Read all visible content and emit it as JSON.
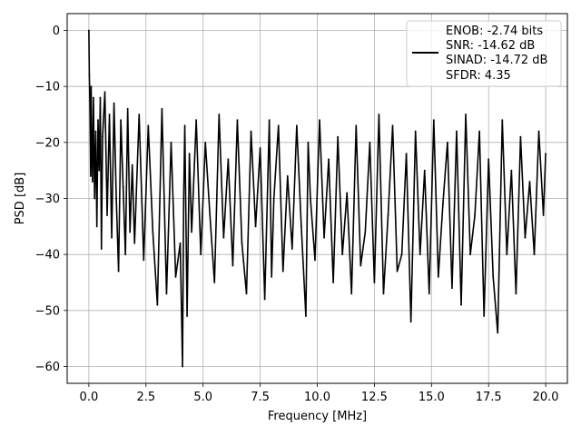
{
  "chart_data": {
    "type": "line",
    "title": "",
    "xlabel": "Frequency [MHz]",
    "ylabel": "PSD [dB]",
    "xlim": [
      -0.95,
      20.95
    ],
    "ylim": [
      -63,
      3
    ],
    "xticks": [
      0.0,
      2.5,
      5.0,
      7.5,
      10.0,
      12.5,
      15.0,
      17.5,
      20.0
    ],
    "xtick_labels": [
      "0.0",
      "2.5",
      "5.0",
      "7.5",
      "10.0",
      "12.5",
      "15.0",
      "17.5",
      "20.0"
    ],
    "yticks": [
      0,
      -10,
      -20,
      -30,
      -40,
      -50,
      -60
    ],
    "ytick_labels": [
      "0",
      "−10",
      "−20",
      "−30",
      "−40",
      "−50",
      "−60"
    ],
    "grid": true,
    "legend_position": "top-right",
    "legend_entries": [
      "ENOB: -2.74 bits",
      "SNR: -14.62 dB",
      "SINAD: -14.72 dB",
      "SFDR: 4.35"
    ],
    "series_color": "#000000",
    "series": [
      {
        "x": [
          0.0,
          0.02,
          0.05,
          0.08,
          0.1,
          0.13,
          0.16,
          0.2,
          0.25,
          0.3,
          0.35,
          0.4,
          0.45,
          0.5,
          0.55,
          0.6,
          0.7,
          0.8,
          0.9,
          1.0,
          1.1,
          1.2,
          1.3,
          1.4,
          1.5,
          1.6,
          1.7,
          1.8,
          1.9,
          2.0,
          2.2,
          2.4,
          2.6,
          2.8,
          3.0,
          3.2,
          3.4,
          3.6,
          3.8,
          4.0,
          4.1,
          4.15,
          4.2,
          4.3,
          4.4,
          4.5,
          4.7,
          4.9,
          5.1,
          5.3,
          5.5,
          5.7,
          5.9,
          6.1,
          6.3,
          6.5,
          6.7,
          6.9,
          7.1,
          7.3,
          7.5,
          7.7,
          7.9,
          8.0,
          8.1,
          8.3,
          8.5,
          8.7,
          8.9,
          9.1,
          9.3,
          9.5,
          9.6,
          9.7,
          9.9,
          10.1,
          10.3,
          10.5,
          10.7,
          10.9,
          11.1,
          11.3,
          11.5,
          11.7,
          11.9,
          12.1,
          12.3,
          12.5,
          12.7,
          12.9,
          13.1,
          13.3,
          13.5,
          13.7,
          13.9,
          14.1,
          14.3,
          14.5,
          14.7,
          14.9,
          15.1,
          15.3,
          15.5,
          15.7,
          15.9,
          16.1,
          16.3,
          16.5,
          16.7,
          16.9,
          17.1,
          17.3,
          17.5,
          17.7,
          17.9,
          18.1,
          18.3,
          18.5,
          18.7,
          18.9,
          19.1,
          19.3,
          19.5,
          19.7,
          19.9,
          20.0
        ],
        "y": [
          0,
          -8,
          -14,
          -26,
          -10,
          -22,
          -27,
          -12,
          -30,
          -18,
          -35,
          -16,
          -25,
          -12,
          -39,
          -19,
          -11,
          -33,
          -15,
          -37,
          -13,
          -30,
          -43,
          -16,
          -28,
          -40,
          -14,
          -36,
          -24,
          -38,
          -15,
          -41,
          -17,
          -36,
          -49,
          -14,
          -47,
          -20,
          -44,
          -38,
          -60,
          -30,
          -17,
          -51,
          -22,
          -36,
          -16,
          -40,
          -20,
          -33,
          -45,
          -15,
          -37,
          -23,
          -42,
          -16,
          -38,
          -47,
          -18,
          -35,
          -21,
          -48,
          -16,
          -44,
          -30,
          -17,
          -43,
          -26,
          -39,
          -17,
          -35,
          -51,
          -20,
          -30,
          -41,
          -16,
          -37,
          -23,
          -45,
          -19,
          -40,
          -29,
          -47,
          -17,
          -42,
          -36,
          -20,
          -45,
          -15,
          -47,
          -33,
          -17,
          -43,
          -40,
          -22,
          -52,
          -18,
          -40,
          -25,
          -47,
          -16,
          -44,
          -31,
          -20,
          -46,
          -18,
          -49,
          -15,
          -40,
          -33,
          -18,
          -51,
          -23,
          -44,
          -54,
          -16,
          -40,
          -25,
          -47,
          -19,
          -37,
          -27,
          -40,
          -18,
          -33,
          -22
        ]
      }
    ]
  }
}
